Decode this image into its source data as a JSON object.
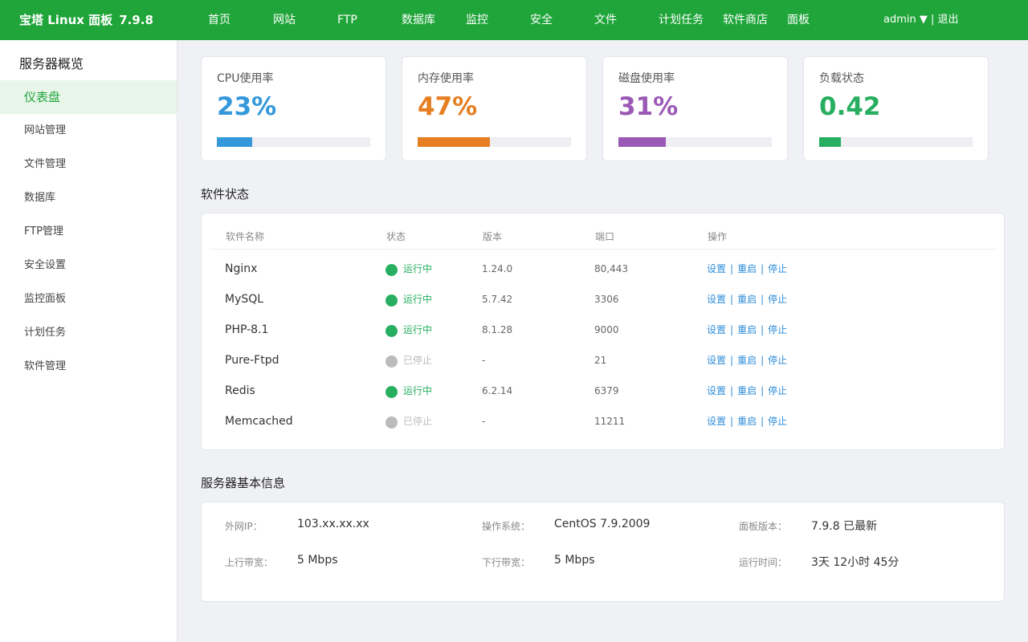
{
  "app": {
    "brand": "宝塔 Linux 面板",
    "version": "7.9.8"
  },
  "colors": {
    "primary": "#20a53a",
    "cpu": "#3498db",
    "mem": "#e67e22",
    "disk": "#9b59b6",
    "load": "#27ae60",
    "running": "#27ae60",
    "stopped": "#bbbbbb",
    "link": "#2d8cd9"
  },
  "nav": {
    "items": [
      "首页",
      "网站",
      "FTP",
      "数据库",
      "监控",
      "安全",
      "文件",
      "计划任务",
      "软件商店",
      "面板"
    ],
    "user": "admin ▼",
    "separator": "|",
    "logout": "退出"
  },
  "sidebar": {
    "title": "服务器概览",
    "items": [
      "仪表盘",
      "网站管理",
      "文件管理",
      "数据库",
      "FTP管理",
      "安全设置",
      "监控面板",
      "计划任务",
      "软件管理"
    ]
  },
  "stats": [
    {
      "label": "CPU使用率",
      "value": "23%",
      "percent": 23
    },
    {
      "label": "内存使用率",
      "value": "47%",
      "percent": 47
    },
    {
      "label": "磁盘使用率",
      "value": "31%",
      "percent": 31
    },
    {
      "label": "负载状态",
      "value": "0.42",
      "percent": 14
    }
  ],
  "software": {
    "title": "软件状态",
    "headers": [
      "软件名称",
      "状态",
      "版本",
      "端口",
      "操作"
    ],
    "rows": [
      {
        "name": "Nginx",
        "status": "运行中",
        "running": true,
        "version": "1.24.0",
        "port": "80,443"
      },
      {
        "name": "MySQL",
        "status": "运行中",
        "running": true,
        "version": "5.7.42",
        "port": "3306"
      },
      {
        "name": "PHP-8.1",
        "status": "运行中",
        "running": true,
        "version": "8.1.28",
        "port": "9000"
      },
      {
        "name": "Pure-Ftpd",
        "status": "已停止",
        "running": false,
        "version": "-",
        "port": "21"
      },
      {
        "name": "Redis",
        "status": "运行中",
        "running": true,
        "version": "6.2.14",
        "port": "6379"
      },
      {
        "name": "Memcached",
        "status": "已停止",
        "running": false,
        "version": "-",
        "port": "11211"
      }
    ],
    "ops": [
      "设置",
      "重启",
      "停止"
    ]
  },
  "server_info": {
    "title": "服务器基本信息",
    "rows": [
      [
        {
          "label": "外网IP：",
          "value": "103.xx.xx.xx"
        },
        {
          "label": "操作系统：",
          "value": "CentOS 7.9.2009"
        },
        {
          "label": "面板版本：",
          "value": "7.9.8 已最新"
        }
      ],
      [
        {
          "label": "上行带宽：",
          "value": "5 Mbps"
        },
        {
          "label": "下行带宽：",
          "value": "5 Mbps"
        },
        {
          "label": "运行时间：",
          "value": "3天 12小时 45分"
        }
      ]
    ]
  }
}
